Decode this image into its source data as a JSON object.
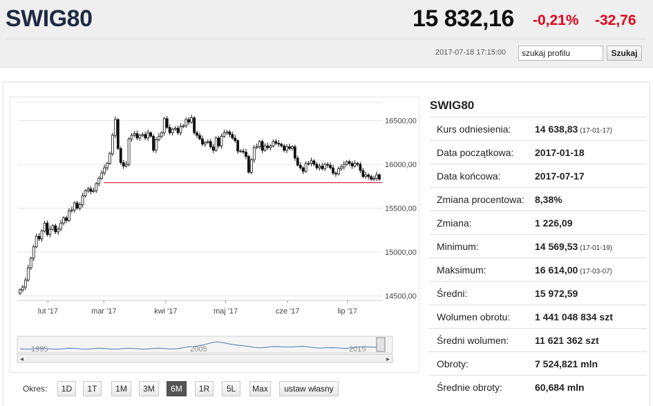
{
  "header": {
    "ticker": "SWIG80",
    "price": "15 832,16",
    "change_pct": "-0,21%",
    "change_abs": "-32,76",
    "timestamp": "2017-07-18 17:15:00",
    "search_value": "szukaj profilu",
    "search_button": "Szukaj"
  },
  "chart_data": {
    "type": "candlestick",
    "title": "",
    "ylim": [
      14450,
      16700
    ],
    "y_ticks": [
      "16500,00",
      "16000,00",
      "15500,00",
      "15000,00",
      "14500,00"
    ],
    "y_tick_values": [
      16500,
      16000,
      15500,
      15000,
      14500
    ],
    "x_ticks": [
      "lut '17",
      "mar '17",
      "kwi '17",
      "maj '17",
      "cze '17",
      "lip '17"
    ],
    "x_tick_days": [
      14,
      42,
      73,
      103,
      134,
      164
    ],
    "reference_line": 15790,
    "reference_color": "#d0021b",
    "close_series": [
      14570,
      14600,
      14680,
      14820,
      14930,
      15060,
      15180,
      15150,
      15240,
      15330,
      15200,
      15260,
      15300,
      15230,
      15260,
      15330,
      15390,
      15360,
      15470,
      15480,
      15560,
      15500,
      15540,
      15640,
      15700,
      15720,
      15690,
      15700,
      15780,
      15840,
      15900,
      15960,
      16010,
      16120,
      16330,
      16510,
      16180,
      16020,
      15980,
      16000,
      16290,
      16330,
      16350,
      16300,
      16330,
      16340,
      16300,
      16360,
      16320,
      16160,
      16280,
      16320,
      16360,
      16520,
      16420,
      16360,
      16400,
      16410,
      16360,
      16430,
      16440,
      16510,
      16480,
      16530,
      16360,
      16330,
      16290,
      16230,
      16250,
      16260,
      16200,
      16160,
      16300,
      16210,
      16320,
      16360,
      16370,
      16340,
      16300,
      16270,
      16150,
      16150,
      16140,
      16090,
      15910,
      16050,
      16190,
      16200,
      16260,
      16160,
      16210,
      16190,
      16210,
      16260,
      16240,
      16230,
      16210,
      16160,
      16200,
      16180,
      16200,
      16070,
      15990,
      15960,
      15920,
      16010,
      16010,
      16040,
      16000,
      15960,
      15980,
      15950,
      16000,
      15990,
      15960,
      15900,
      15890,
      15950,
      15970,
      16000,
      16030,
      16010,
      15980,
      16010,
      16000,
      15930,
      15860,
      15880,
      15860,
      15830,
      15840,
      15880,
      15830
    ],
    "navigator": {
      "labels": [
        "1995",
        "2005",
        "2015"
      ],
      "color": "#4a7ab8"
    }
  },
  "periods": {
    "label": "Okres:",
    "buttons": [
      "1D",
      "1T",
      "1M",
      "3M",
      "6M",
      "1R",
      "5L",
      "Max",
      "ustaw własny"
    ],
    "active": "6M"
  },
  "info": {
    "title": "SWIG80",
    "rows": [
      {
        "label": "Kurs odniesienia:",
        "value": "14 638,83",
        "date": "(17-01-17)"
      },
      {
        "label": "Data początkowa:",
        "value": "2017-01-18",
        "date": ""
      },
      {
        "label": "Data końcowa:",
        "value": "2017-07-17",
        "date": ""
      },
      {
        "label": "Zmiana procentowa:",
        "value": "8,38%",
        "date": ""
      },
      {
        "label": "Zmiana:",
        "value": "1 226,09",
        "date": ""
      },
      {
        "label": "Minimum:",
        "value": "14 569,53",
        "date": "(17-01-19)"
      },
      {
        "label": "Maksimum:",
        "value": "16 614,00",
        "date": "(17-03-07)"
      },
      {
        "label": "Średni:",
        "value": "15 972,59",
        "date": ""
      },
      {
        "label": "Wolumen obrotu:",
        "value": "1 441 048 834 szt",
        "date": ""
      },
      {
        "label": "Średni wolumen:",
        "value": "11 621 362 szt",
        "date": ""
      },
      {
        "label": "Obroty:",
        "value": "7 524,821 mln",
        "date": ""
      },
      {
        "label": "Średnie obroty:",
        "value": "60,684 mln",
        "date": ""
      }
    ]
  }
}
